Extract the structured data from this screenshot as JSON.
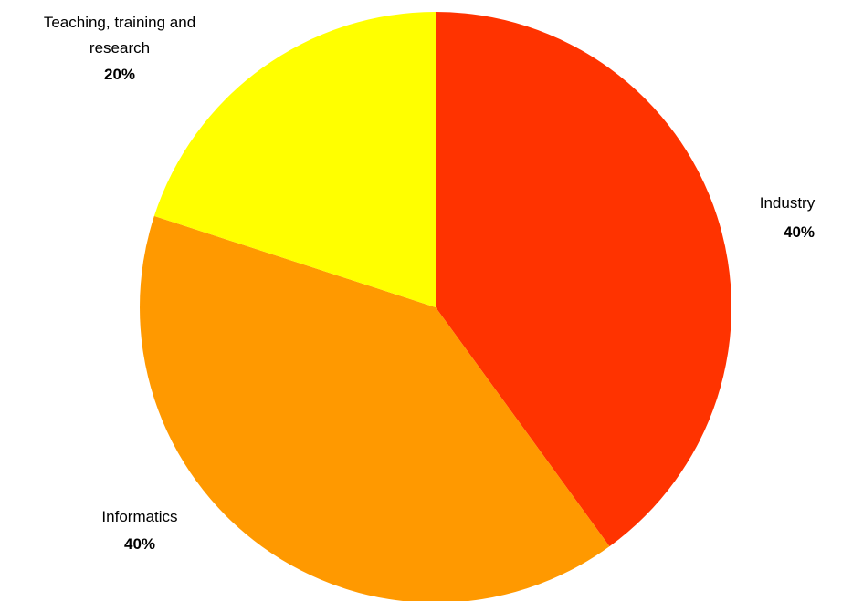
{
  "chart_data": {
    "type": "pie",
    "title": "",
    "slices": [
      {
        "label": "Industry",
        "value": 40,
        "percent_label": "40%",
        "color": "#FF3300"
      },
      {
        "label": "Informatics",
        "value": 40,
        "percent_label": "40%",
        "color": "#FF9900"
      },
      {
        "label": "Teaching, training and research",
        "value": 20,
        "percent_label": "20%",
        "color": "#FFFF00"
      }
    ],
    "start_angle": "12 o'clock",
    "direction": "clockwise",
    "legend": "none",
    "labels": "outside"
  }
}
